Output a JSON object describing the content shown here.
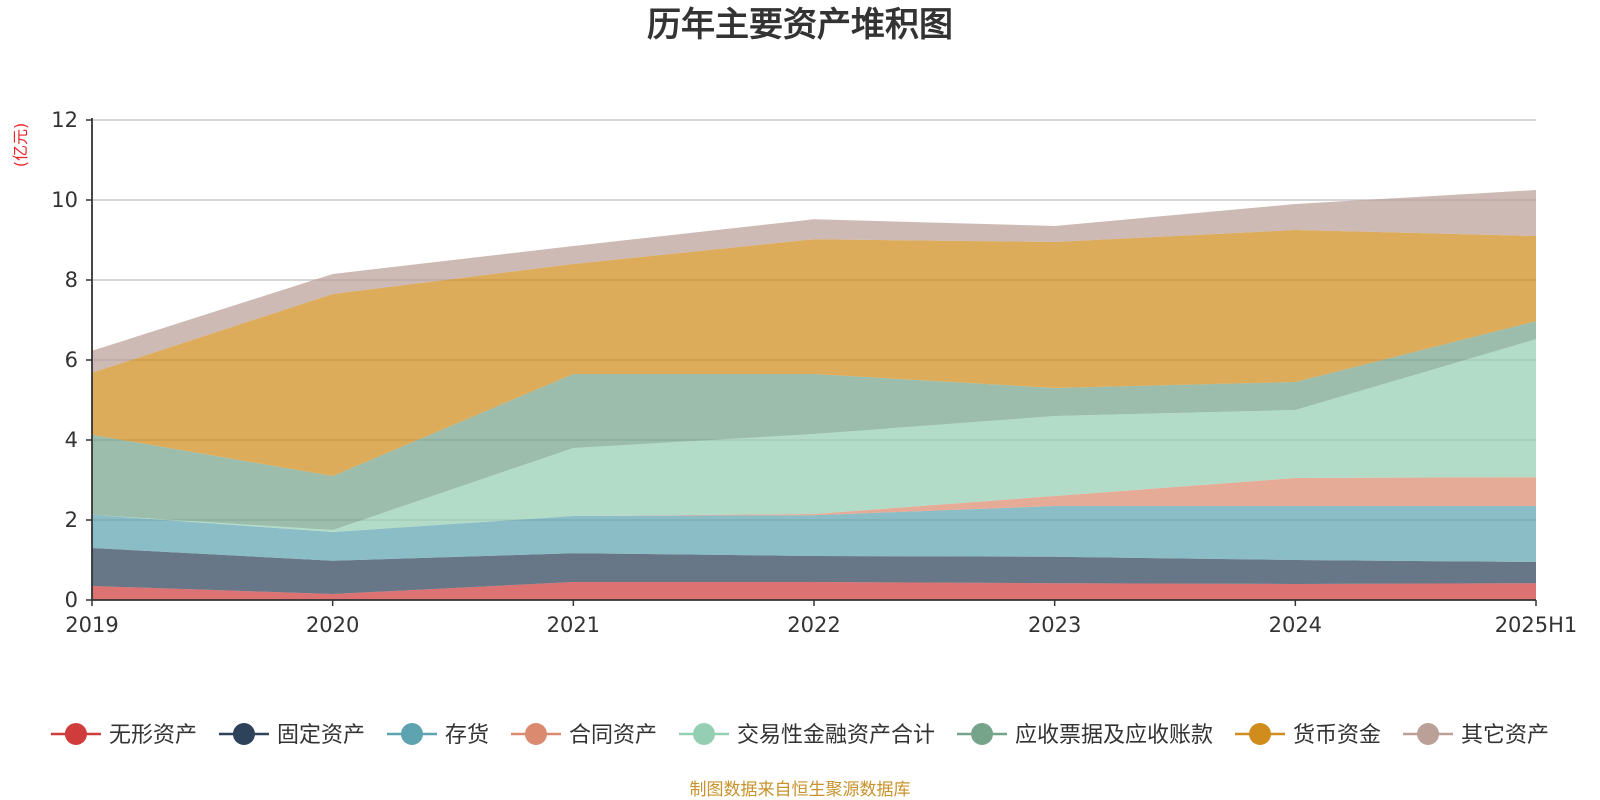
{
  "chart_data": {
    "type": "area",
    "stacked": true,
    "title": "历年主要资产堆积图",
    "unit_label": "(亿元)",
    "categories": [
      "2019",
      "2020",
      "2021",
      "2022",
      "2023",
      "2024",
      "2025H1"
    ],
    "y_ticks": [
      "0",
      "2",
      "4",
      "6",
      "8",
      "10",
      "12"
    ],
    "ylim": [
      0,
      12
    ],
    "grid": true,
    "legend_position": "bottom",
    "series": [
      {
        "name": "无形资产",
        "color": "#d03c3c",
        "values": [
          0.35,
          0.15,
          0.45,
          0.45,
          0.42,
          0.4,
          0.42
        ]
      },
      {
        "name": "固定资产",
        "color": "#2e4359",
        "values": [
          0.95,
          0.83,
          0.72,
          0.65,
          0.66,
          0.6,
          0.53
        ]
      },
      {
        "name": "存货",
        "color": "#5ea3b0",
        "values": [
          0.83,
          0.72,
          0.93,
          1.02,
          1.27,
          1.35,
          1.4
        ]
      },
      {
        "name": "合同资产",
        "color": "#dc8a6f",
        "values": [
          0,
          0,
          0,
          0.03,
          0.25,
          0.7,
          0.72
        ]
      },
      {
        "name": "交易性金融资产合计",
        "color": "#95cfb3",
        "values": [
          0,
          0.05,
          1.7,
          2.0,
          2.0,
          1.7,
          3.45
        ]
      },
      {
        "name": "应收票据及应收账款",
        "color": "#76a48a",
        "values": [
          2.0,
          1.35,
          1.85,
          1.5,
          0.7,
          0.7,
          0.45
        ]
      },
      {
        "name": "货币资金",
        "color": "#d08c1c",
        "values": [
          1.55,
          4.55,
          2.75,
          3.37,
          3.65,
          3.8,
          2.13
        ]
      },
      {
        "name": "其它资产",
        "color": "#bba098",
        "values": [
          0.55,
          0.5,
          0.45,
          0.5,
          0.4,
          0.65,
          1.15
        ]
      }
    ]
  },
  "source_note": "制图数据来自恒生聚源数据库"
}
